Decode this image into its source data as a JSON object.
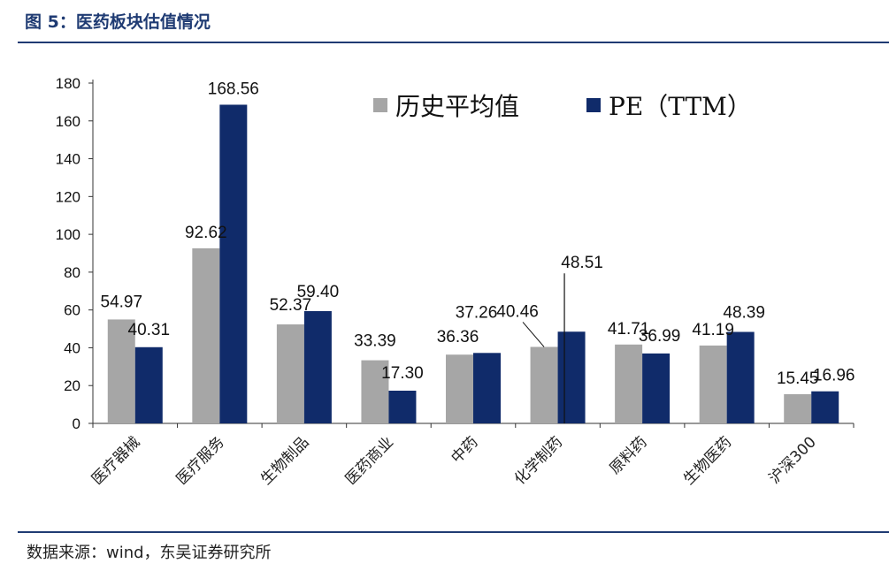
{
  "figure": {
    "title": "图 5：医药板块估值情况",
    "source": "数据来源：wind，东吴证券研究所"
  },
  "chart_data": {
    "type": "bar",
    "categories": [
      "医疗器械",
      "医疗服务",
      "生物制品",
      "医药商业",
      "中药",
      "化学制药",
      "原料药",
      "生物医药",
      "沪深300"
    ],
    "series": [
      {
        "name": "历史平均值",
        "values": [
          54.97,
          92.62,
          52.37,
          33.39,
          36.36,
          40.46,
          41.71,
          41.19,
          15.45
        ],
        "color": "#a6a6a6"
      },
      {
        "name": "PE（TTM）",
        "values": [
          40.31,
          168.56,
          59.4,
          17.3,
          37.26,
          48.51,
          36.99,
          48.39,
          16.96
        ],
        "color": "#102b6a"
      }
    ],
    "ylim": [
      0,
      180
    ],
    "yticks": [
      0,
      20,
      40,
      60,
      80,
      100,
      120,
      140,
      160,
      180
    ],
    "legend_position": "top-right",
    "grid": false
  }
}
